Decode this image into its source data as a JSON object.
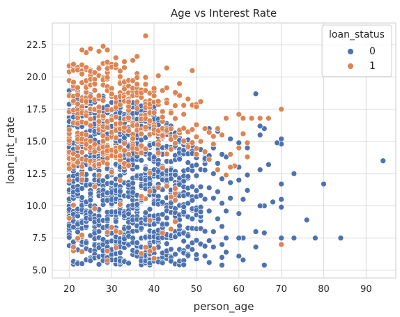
{
  "chart_data": {
    "type": "scatter",
    "title": "Age vs Interest Rate",
    "xlabel": "person_age",
    "ylabel": "loan_int_rate",
    "xlim": [
      16,
      97
    ],
    "ylim": [
      4.4,
      24.2
    ],
    "xticks": [
      "20",
      "30",
      "40",
      "50",
      "60",
      "70",
      "80",
      "90"
    ],
    "yticks": [
      "5.0",
      "7.5",
      "10.0",
      "12.5",
      "15.0",
      "17.5",
      "20.0",
      "22.5"
    ],
    "grid": true,
    "legend": {
      "title": "loan_status",
      "placement": "top-right",
      "entries": [
        {
          "label": "0",
          "color": "#4c72b0"
        },
        {
          "label": "1",
          "color": "#dd8452"
        }
      ]
    },
    "series": [
      {
        "name": "0",
        "color": "#4c72b0",
        "points": [
          [
            94,
            13.5
          ],
          [
            84,
            7.5
          ],
          [
            80,
            11.7
          ],
          [
            78,
            7.5
          ],
          [
            76,
            8.9
          ],
          [
            73,
            12.5
          ],
          [
            73,
            7.5
          ],
          [
            70,
            15.2
          ],
          [
            70,
            14.8
          ],
          [
            70,
            11.7
          ],
          [
            70,
            10.5
          ],
          [
            70,
            9.9
          ],
          [
            70,
            7.5
          ],
          [
            69,
            14.9
          ],
          [
            68,
            10.3
          ],
          [
            67,
            13.2
          ],
          [
            66,
            16.0
          ],
          [
            66,
            10.0
          ],
          [
            66,
            7.9
          ],
          [
            66,
            5.4
          ],
          [
            65,
            16.2
          ],
          [
            65,
            15.5
          ],
          [
            65,
            12.8
          ],
          [
            65,
            10.0
          ],
          [
            64,
            18.7
          ],
          [
            64,
            8.0
          ],
          [
            64,
            6.8
          ],
          [
            62,
            14.5
          ],
          [
            62,
            12.4
          ],
          [
            62,
            11.2
          ],
          [
            61,
            15.6
          ],
          [
            61,
            10.5
          ],
          [
            61,
            7.5
          ],
          [
            61,
            5.8
          ],
          [
            60,
            14.9
          ],
          [
            60,
            13.0
          ],
          [
            60,
            12.0
          ],
          [
            60,
            9.4
          ],
          [
            60,
            7.5
          ],
          [
            60,
            6.1
          ],
          [
            58,
            15.2
          ],
          [
            58,
            11.8
          ],
          [
            58,
            10.6
          ],
          [
            57,
            13.8
          ],
          [
            57,
            9.6
          ],
          [
            57,
            7.5
          ],
          [
            57,
            6.4
          ],
          [
            56,
            14.0
          ],
          [
            56,
            12.1
          ],
          [
            56,
            10.2
          ],
          [
            56,
            8.4
          ],
          [
            56,
            7.0
          ],
          [
            56,
            6.0
          ],
          [
            56,
            5.4
          ],
          [
            55,
            15.8
          ],
          [
            55,
            13.3
          ],
          [
            55,
            11.1
          ],
          [
            55,
            9.0
          ],
          [
            54,
            14.5
          ],
          [
            54,
            12.5
          ],
          [
            54,
            10.6
          ],
          [
            54,
            8.0
          ],
          [
            54,
            6.8
          ],
          [
            53,
            16.0
          ],
          [
            53,
            13.9
          ],
          [
            53,
            11.4
          ],
          [
            53,
            9.6
          ],
          [
            53,
            7.3
          ],
          [
            53,
            5.6
          ]
        ],
        "note_dense_block": {
          "x": [
            20,
            52
          ],
          "y": [
            5.4,
            19.0
          ]
        }
      },
      {
        "name": "1",
        "color": "#dd8452",
        "points": [
          [
            70,
            17.5
          ],
          [
            70,
            7.0
          ],
          [
            67,
            16.8
          ],
          [
            65,
            16.8
          ],
          [
            63,
            16.8
          ],
          [
            62,
            14.9
          ],
          [
            62,
            13.8
          ],
          [
            61,
            16.8
          ],
          [
            61,
            15.6
          ],
          [
            60,
            17.1
          ],
          [
            60,
            14.5
          ],
          [
            59,
            13.1
          ],
          [
            58,
            14.0
          ],
          [
            58,
            13.0
          ],
          [
            57,
            16.8
          ],
          [
            57,
            12.4
          ],
          [
            56,
            15.5
          ],
          [
            55,
            16.0
          ],
          [
            55,
            12.8
          ],
          [
            54,
            15.4
          ],
          [
            54,
            14.8
          ],
          [
            53,
            15.7
          ],
          [
            53,
            13.6
          ],
          [
            52,
            16.0
          ],
          [
            52,
            14.2
          ],
          [
            51,
            18.1
          ],
          [
            51,
            15.0
          ],
          [
            50,
            17.7
          ],
          [
            50,
            16.3
          ],
          [
            49,
            20.5
          ],
          [
            48,
            18.3
          ],
          [
            46,
            19.5
          ],
          [
            45,
            18.8
          ],
          [
            43,
            20.7
          ],
          [
            41,
            20.1
          ],
          [
            38,
            23.2
          ],
          [
            36,
            21.6
          ],
          [
            35,
            21.3
          ],
          [
            33,
            21.2
          ],
          [
            31,
            21.5
          ],
          [
            29,
            22.1
          ],
          [
            28,
            22.4
          ],
          [
            27,
            22.0
          ],
          [
            25,
            22.2
          ],
          [
            24,
            21.9
          ],
          [
            23,
            22.1
          ],
          [
            21,
            21.0
          ]
        ],
        "note_dense_block": {
          "x": [
            20,
            50
          ],
          "y": [
            13.0,
            21.0
          ]
        }
      }
    ]
  }
}
